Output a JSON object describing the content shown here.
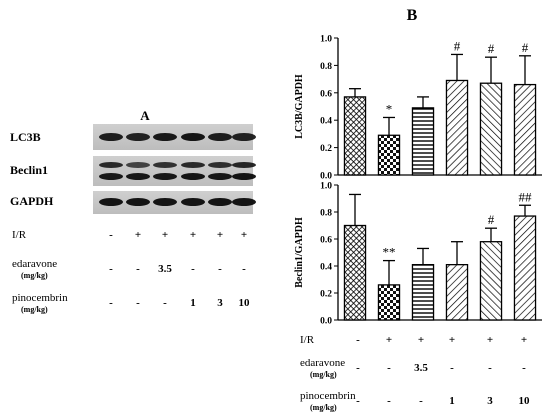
{
  "panel_a": {
    "label": "A",
    "blot_labels": [
      "LC3B",
      "Beclin1",
      "GAPDH"
    ],
    "rows": [
      {
        "name": "I/R",
        "unit": "",
        "values": [
          "-",
          "+",
          "+",
          "+",
          "+",
          "+"
        ]
      },
      {
        "name": "edaravone",
        "unit": "(mg/kg)",
        "values": [
          "-",
          "-",
          "3.5",
          "-",
          "-",
          "-"
        ]
      },
      {
        "name": "pinocembrin",
        "unit": "(mg/kg)",
        "values": [
          "-",
          "-",
          "-",
          "1",
          "3",
          "10"
        ]
      }
    ]
  },
  "panel_b": {
    "label": "B",
    "rows": [
      {
        "name": "I/R",
        "unit": "",
        "values": [
          "-",
          "+",
          "+",
          "+",
          "+",
          "+"
        ]
      },
      {
        "name": "edaravone",
        "unit": "(mg/kg)",
        "values": [
          "-",
          "-",
          "3.5",
          "-",
          "-",
          "-"
        ]
      },
      {
        "name": "pinocembrin",
        "unit": "(mg/kg)",
        "values": [
          "-",
          "-",
          "-",
          "1",
          "3",
          "10"
        ]
      }
    ]
  },
  "chart_data": [
    {
      "type": "bar",
      "ylabel": "LC3B/GAPDH",
      "ylim": [
        0,
        1.0
      ],
      "yticks": [
        "0.0",
        "0.2",
        "0.4",
        "0.6",
        "0.8",
        "1.0"
      ],
      "values": [
        0.57,
        0.29,
        0.49,
        0.69,
        0.67,
        0.66
      ],
      "errors": [
        0.06,
        0.13,
        0.08,
        0.19,
        0.19,
        0.21
      ],
      "annotations": [
        "",
        "*",
        "",
        "#",
        "#",
        "#"
      ],
      "patterns": [
        "crosshatch",
        "checker",
        "horizontal",
        "diag-right",
        "diag-left",
        "diag-right"
      ]
    },
    {
      "type": "bar",
      "ylabel": "Beclin1/GAPDH",
      "ylim": [
        0,
        1.0
      ],
      "yticks": [
        "0.0",
        "0.2",
        "0.4",
        "0.6",
        "0.8",
        "1.0"
      ],
      "values": [
        0.7,
        0.26,
        0.41,
        0.41,
        0.58,
        0.77
      ],
      "errors": [
        0.23,
        0.18,
        0.12,
        0.17,
        0.1,
        0.08
      ],
      "annotations": [
        "",
        "**",
        "",
        "",
        "#",
        "##"
      ],
      "patterns": [
        "crosshatch",
        "checker",
        "horizontal",
        "diag-right",
        "diag-left",
        "diag-right"
      ]
    }
  ]
}
